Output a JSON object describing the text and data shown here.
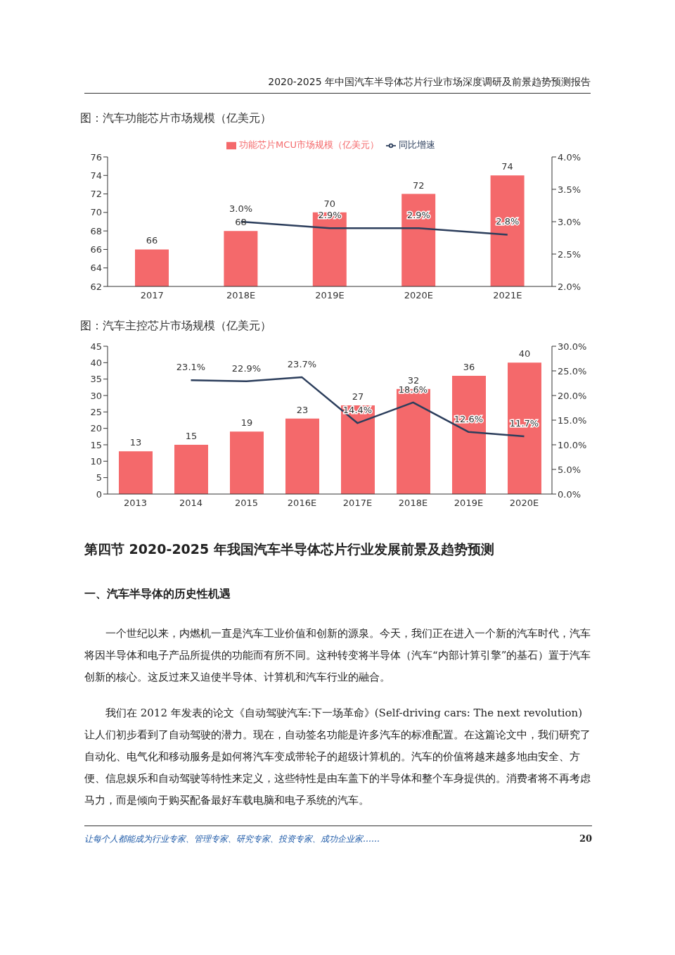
{
  "chart_data": [
    {
      "type": "bar",
      "title": "图：汽车功能芯片市场规模（亿美元）",
      "categories": [
        "2017",
        "2018E",
        "2019E",
        "2020E",
        "2021E"
      ],
      "series": [
        {
          "type": "bar",
          "name": "功能芯片MCU市场规模（亿美元）",
          "color": "#f4696b",
          "values": [
            66,
            68,
            70,
            72,
            74
          ],
          "value_labels": [
            "66",
            "68",
            "70",
            "72",
            "74"
          ]
        },
        {
          "type": "line",
          "name": "同比增速",
          "color": "#2c3e5c",
          "axis": "y2",
          "values": [
            null,
            3.0,
            2.9,
            2.9,
            2.8
          ],
          "value_labels": [
            null,
            "3.0%",
            "2.9%",
            "2.9%",
            "2.8%"
          ]
        }
      ],
      "ylim": [
        62,
        76
      ],
      "yticks": [
        62,
        64,
        66,
        68,
        70,
        72,
        74,
        76
      ],
      "y2lim": [
        2.0,
        4.0
      ],
      "y2ticks": [
        {
          "value": 2.0,
          "label": "2.0%"
        },
        {
          "value": 2.5,
          "label": "2.5%"
        },
        {
          "value": 3.0,
          "label": "3.0%"
        },
        {
          "value": 3.5,
          "label": "3.5%"
        },
        {
          "value": 4.0,
          "label": "4.0%"
        }
      ],
      "legend": "top",
      "marker": "none"
    },
    {
      "type": "bar",
      "title": "图：汽车主控芯片市场规模（亿美元）",
      "categories": [
        "2013",
        "2014",
        "2015",
        "2016E",
        "2017E",
        "2018E",
        "2019E",
        "2020E"
      ],
      "series": [
        {
          "type": "bar",
          "color": "#f4696b",
          "values": [
            13,
            15,
            19,
            23,
            27,
            32,
            36,
            40
          ],
          "value_labels": [
            "13",
            "15",
            "19",
            "23",
            "27",
            "32",
            "36",
            "40"
          ]
        },
        {
          "type": "line",
          "color": "#2c3e5c",
          "axis": "y2",
          "values": [
            null,
            23.1,
            22.9,
            23.7,
            14.4,
            18.6,
            12.6,
            11.7
          ],
          "value_labels": [
            null,
            "23.1%",
            "22.9%",
            "23.7%",
            "14.4%",
            "18.6%",
            "12.6%",
            "11.7%"
          ]
        }
      ],
      "ylim": [
        0,
        45
      ],
      "yticks": [
        0,
        5,
        10,
        15,
        20,
        25,
        30,
        35,
        40,
        45
      ],
      "y2lim": [
        0,
        30
      ],
      "y2ticks": [
        {
          "value": 0,
          "label": "0.0%"
        },
        {
          "value": 5,
          "label": "5.0%"
        },
        {
          "value": 10,
          "label": "10.0%"
        },
        {
          "value": 15,
          "label": "15.0%"
        },
        {
          "value": 20,
          "label": "20.0%"
        },
        {
          "value": 25,
          "label": "25.0%"
        },
        {
          "value": 30,
          "label": "30.0%"
        }
      ],
      "legend": false,
      "marker": "none"
    },
    {
      "type": "other",
      "title": "第四节 2020-2025 年我国汽车半导体芯片行业发展前景及趋势预测",
      "subtitle": "一、汽车半导体的历史性机遇",
      "annotations": [
        "2020-2025 年中国汽车半导体芯片行业市场深度调研及前景趋势预测报告",
        "一个世纪以来，内燃机一直是汽车工业价值和创新的源泉。今天，我们正在进入一个新的汽车时代，汽车将因半导体和电子产品所提供的功能而有所不同。这种转变将半导体（汽车“内部计算引擎”的基石）置于汽车创新的核心。这反过来又迫使半导体、计算机和汽车行业的融合。",
        "我们在 2012 年发表的论文《自动驾驶汽车:下一场革命》(Self-driving cars: The next revolution)让人们初步看到了自动驾驶的潜力。现在，自动签名功能是许多汽车的标准配置。在这篇论文中，我们研究了自动化、电气化和移动服务是如何将汽车变成带轮子的超级计算机的。汽车的价值将越来越多地由安全、方便、信息娱乐和自动驾驶等特性来定义，这些特性是由车盖下的半导体和整个车身提供的。消费者将不再考虑马力，而是倾向于购买配备最好车载电脑和电子系统的汽车。",
        "让每个人都能成为行业专家、管理专家、研究专家、投资专家、成功企业家……",
        "20"
      ]
    }
  ]
}
